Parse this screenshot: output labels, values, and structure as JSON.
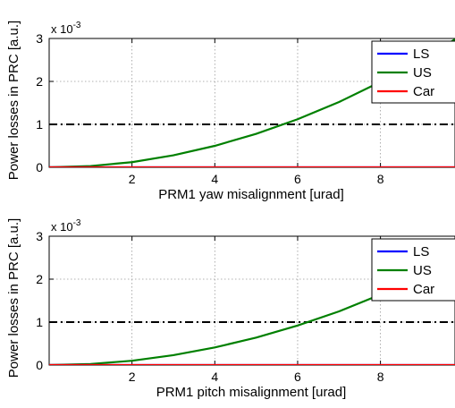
{
  "chart_data": [
    {
      "type": "line",
      "xlabel": "PRM1 yaw misalignment [urad]",
      "ylabel": "Power losses in PRC [a.u.]",
      "y_multiplier": "x 10",
      "y_multiplier_exponent": "-3",
      "xlim": [
        0,
        9.8
      ],
      "ylim": [
        0,
        3
      ],
      "xticks": [
        2,
        4,
        6,
        8
      ],
      "yticks": [
        0,
        1,
        2,
        3
      ],
      "grid": true,
      "legend_position": "top-right",
      "threshold": {
        "y": 1,
        "style": "dash-dot",
        "color": "#000000"
      },
      "series": [
        {
          "name": "LS",
          "color": "#0000ff",
          "x": [
            0,
            9.8
          ],
          "y": [
            0,
            0
          ]
        },
        {
          "name": "US",
          "color": "#008000",
          "x": [
            0,
            1,
            2,
            3,
            4,
            5,
            6,
            7,
            8,
            9,
            9.8
          ],
          "y": [
            0,
            0.03,
            0.12,
            0.28,
            0.5,
            0.78,
            1.12,
            1.52,
            1.99,
            2.51,
            2.98
          ]
        },
        {
          "name": "Car",
          "color": "#ff0000",
          "x": [
            0,
            9.8
          ],
          "y": [
            0,
            0
          ]
        }
      ]
    },
    {
      "type": "line",
      "xlabel": "PRM1 pitch misalignment [urad]",
      "ylabel": "Power losses in PRC [a.u.]",
      "y_multiplier": "x 10",
      "y_multiplier_exponent": "-3",
      "xlim": [
        0,
        9.8
      ],
      "ylim": [
        0,
        3
      ],
      "xticks": [
        2,
        4,
        6,
        8
      ],
      "yticks": [
        0,
        1,
        2,
        3
      ],
      "grid": true,
      "legend_position": "top-right",
      "threshold": {
        "y": 1,
        "style": "dash-dot",
        "color": "#000000"
      },
      "series": [
        {
          "name": "LS",
          "color": "#0000ff",
          "x": [
            0,
            9.8
          ],
          "y": [
            0,
            0
          ]
        },
        {
          "name": "US",
          "color": "#008000",
          "x": [
            0,
            1,
            2,
            3,
            4,
            5,
            6,
            7,
            8,
            9,
            9.8
          ],
          "y": [
            0,
            0.025,
            0.1,
            0.23,
            0.41,
            0.64,
            0.92,
            1.25,
            1.64,
            2.07,
            2.45
          ]
        },
        {
          "name": "Car",
          "color": "#ff0000",
          "x": [
            0,
            9.8
          ],
          "y": [
            0,
            0
          ]
        }
      ]
    }
  ]
}
